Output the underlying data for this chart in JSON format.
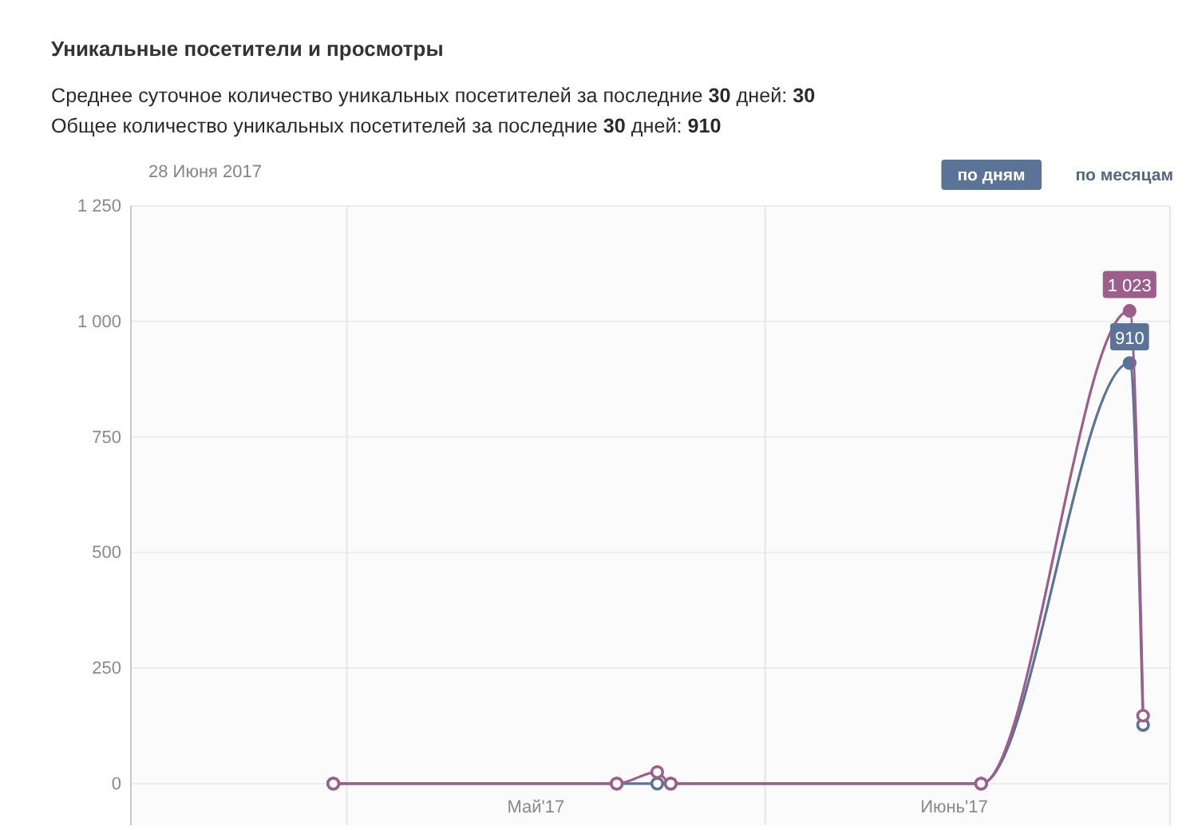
{
  "chart_data": {
    "type": "line",
    "title": "Уникальные посетители и просмотры",
    "annotations": [
      "Среднее суточное количество уникальных посетителей за последние 30 дней: 30",
      "Общее количество уникальных посетителей за последние 30 дней: 910",
      "28 Июня 2017",
      "по дням",
      "по месяцам"
    ],
    "x": [
      "2017-04-30",
      "2017-05-21",
      "2017-05-24",
      "2017-05-25",
      "2017-06-17",
      "2017-06-28",
      "2017-06-29"
    ],
    "series": [
      {
        "color": "#5b7396",
        "values": [
          0,
          0,
          0,
          0,
          0,
          910,
          127
        ],
        "value_labels": [
          null,
          null,
          null,
          null,
          null,
          "910",
          null
        ]
      },
      {
        "color": "#9c5f8c",
        "values": [
          0,
          0,
          25,
          0,
          0,
          1023,
          147
        ],
        "value_labels": [
          null,
          null,
          null,
          null,
          null,
          "1 023",
          null
        ]
      }
    ],
    "xlim": [
      "2017-04-15",
      "2017-07-01"
    ],
    "xticks": [
      {
        "value": "2017-05-01",
        "label": null
      },
      {
        "value": "2017-05-15",
        "label": "Май'17"
      },
      {
        "value": "2017-06-01",
        "label": null
      },
      {
        "value": "2017-06-15",
        "label": "Июнь'17"
      },
      {
        "value": "2017-07-01",
        "label": null
      }
    ],
    "ylim": [
      -90,
      1250
    ],
    "yticks": [
      0,
      250,
      500,
      750,
      {
        "value": 1000,
        "label": "1 000"
      },
      {
        "value": 1250,
        "label": "1 250"
      }
    ],
    "grid": true,
    "marker": "circle",
    "line_style": "solid"
  }
}
